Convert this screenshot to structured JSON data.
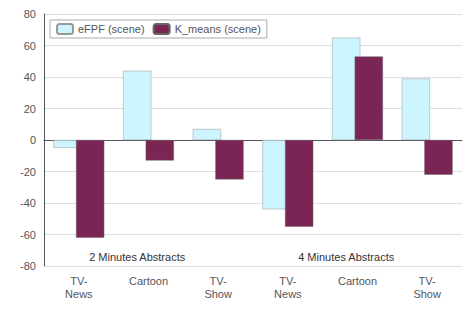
{
  "chart_data": {
    "type": "bar",
    "categories": [
      "TV-\nNews",
      "Cartoon",
      "TV-\nShow",
      "TV-\nNews",
      "Cartoon",
      "TV-\nShow"
    ],
    "series": [
      {
        "name": "eFPF (scene)",
        "color": "#ccf5ff",
        "values": [
          -5,
          44,
          7,
          -44,
          65,
          39
        ]
      },
      {
        "name": "K_means (scene)",
        "color": "#7b2555",
        "values": [
          -62,
          -13,
          -25,
          -55,
          53,
          -22
        ]
      }
    ],
    "ylim": [
      -80,
      80
    ],
    "yticks": [
      -80,
      -60,
      -40,
      -20,
      0,
      20,
      40,
      60,
      80
    ],
    "grid": true,
    "legend": "upper left",
    "annotations": [
      "2 Minutes Abstracts",
      "4 Minutes Abstracts"
    ]
  }
}
